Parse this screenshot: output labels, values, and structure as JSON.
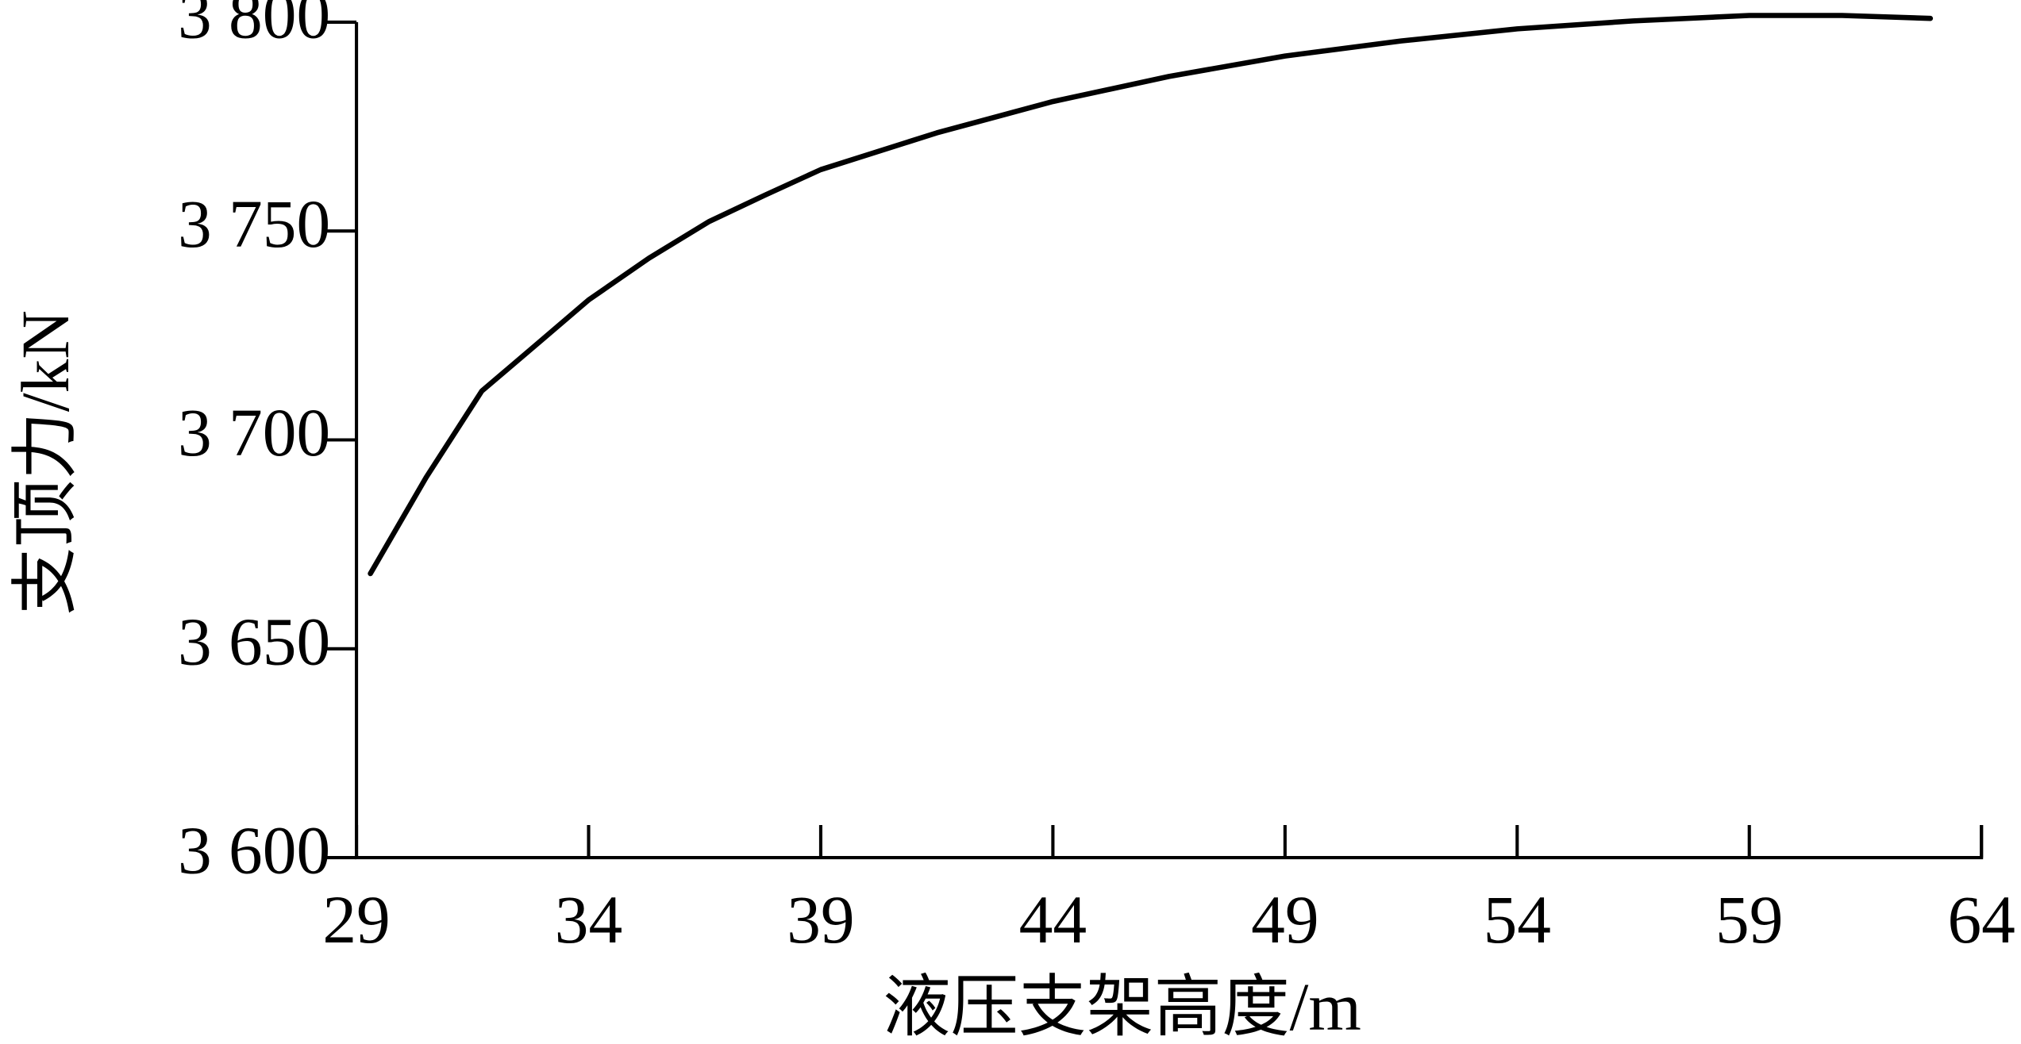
{
  "chart_data": {
    "type": "line",
    "x_label": "液压支架高度/m",
    "y_label": "支顶力/kN",
    "x": [
      29.3,
      30.5,
      31.7,
      33,
      34,
      35.3,
      36.6,
      37.8,
      39,
      41.5,
      44,
      46.5,
      49,
      51.5,
      54,
      56.5,
      59,
      61,
      62.9
    ],
    "series": [
      {
        "name": "支顶力",
        "color": "#000000",
        "values": [
          3668,
          3691,
          3711.7,
          3724,
          3733.5,
          3743.5,
          3752.3,
          3758.6,
          3764.7,
          3773.5,
          3781,
          3787,
          3791.9,
          3795.5,
          3798.4,
          3800.3,
          3801.6,
          3801.6,
          3800.9
        ]
      }
    ],
    "xlim": [
      29,
      64
    ],
    "xticks": [
      29,
      34,
      39,
      44,
      49,
      54,
      59,
      64
    ],
    "ylim": [
      3600,
      3800
    ],
    "yticks": [
      {
        "value": 3600,
        "label": "3 600"
      },
      {
        "value": 3650,
        "label": "3 650"
      },
      {
        "value": 3700,
        "label": "3 700"
      },
      {
        "value": 3750,
        "label": "3 750"
      },
      {
        "value": 3800,
        "label": "3 800"
      }
    ]
  }
}
